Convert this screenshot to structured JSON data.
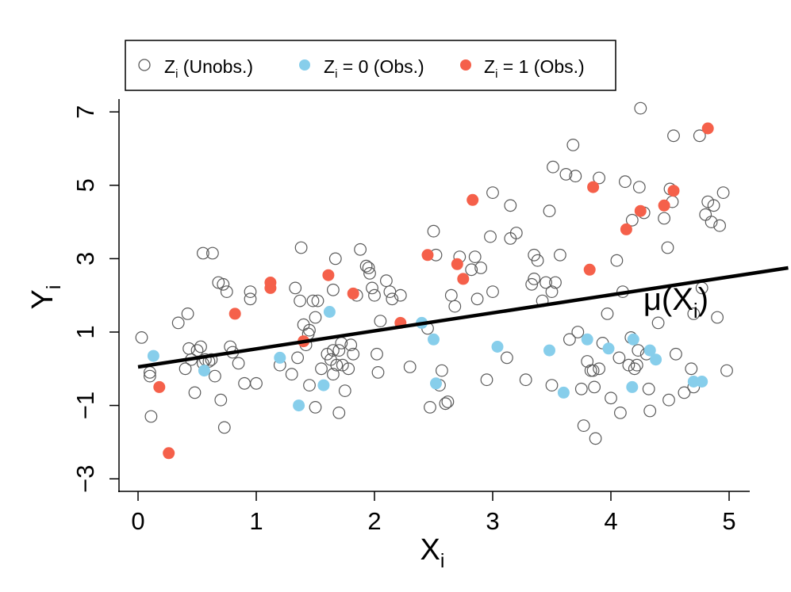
{
  "chart_data": {
    "type": "scatter",
    "xlim": [
      -0.15,
      5.5
    ],
    "ylim": [
      -3.4,
      7.4
    ],
    "xlabel": {
      "main": "X",
      "sub": "i"
    },
    "ylabel": {
      "main": "Y",
      "sub": "i"
    },
    "x_ticks": [
      0,
      1,
      2,
      3,
      4,
      5
    ],
    "y_ticks": [
      -3,
      -1,
      1,
      3,
      5,
      7
    ],
    "x_tick_labels": [
      "0",
      "1",
      "2",
      "3",
      "4",
      "5"
    ],
    "y_tick_labels": [
      "−3",
      "−1",
      "1",
      "3",
      "5",
      "7"
    ],
    "grid": false,
    "legend": {
      "position": "top",
      "items": [
        {
          "var": "Z",
          "sub": "i",
          "text": " (Unobs.)",
          "marker": "open-circle"
        },
        {
          "var": "Z",
          "sub": "i",
          "text": " = 0 (Obs.)",
          "marker": "filled-circle"
        },
        {
          "var": "Z",
          "sub": "i",
          "text": " = 1 (Obs.)",
          "marker": "filled-circle"
        }
      ]
    },
    "line": {
      "name": "μ(X_i)",
      "label_parts": {
        "pre": "μ(X",
        "sub": "i",
        "post": ")"
      },
      "label_at": [
        4.55,
        1.6
      ],
      "color": "#000000",
      "points": [
        [
          0.0,
          0.05
        ],
        [
          5.5,
          2.75
        ]
      ]
    },
    "series": [
      {
        "key": "unobs",
        "color": "#5a5a5a",
        "filled": false,
        "points": [
          [
            0.03,
            0.85
          ],
          [
            0.1,
            -0.1
          ],
          [
            0.1,
            -0.2
          ],
          [
            0.11,
            -1.3
          ],
          [
            0.34,
            1.25
          ],
          [
            0.4,
            0.0
          ],
          [
            0.42,
            1.5
          ],
          [
            0.43,
            0.55
          ],
          [
            0.45,
            0.25
          ],
          [
            0.48,
            -0.65
          ],
          [
            0.5,
            0.5
          ],
          [
            0.53,
            0.6
          ],
          [
            0.55,
            0.15
          ],
          [
            0.57,
            0.25
          ],
          [
            0.6,
            0.2
          ],
          [
            0.62,
            0.25
          ],
          [
            0.65,
            -0.2
          ],
          [
            0.55,
            3.15
          ],
          [
            0.63,
            3.15
          ],
          [
            0.68,
            2.35
          ],
          [
            0.72,
            2.3
          ],
          [
            0.7,
            -0.85
          ],
          [
            0.73,
            -1.6
          ],
          [
            0.75,
            2.1
          ],
          [
            0.78,
            0.6
          ],
          [
            0.8,
            0.45
          ],
          [
            0.85,
            0.15
          ],
          [
            0.9,
            -0.4
          ],
          [
            0.95,
            2.1
          ],
          [
            0.95,
            1.9
          ],
          [
            1.0,
            -0.4
          ],
          [
            1.2,
            0.1
          ],
          [
            1.3,
            -0.15
          ],
          [
            1.33,
            2.2
          ],
          [
            1.35,
            0.3
          ],
          [
            1.37,
            1.85
          ],
          [
            1.38,
            3.3
          ],
          [
            1.4,
            1.2
          ],
          [
            1.42,
            0.65
          ],
          [
            1.44,
            0.95
          ],
          [
            1.45,
            1.05
          ],
          [
            1.45,
            -0.45
          ],
          [
            1.48,
            1.85
          ],
          [
            1.5,
            1.4
          ],
          [
            1.5,
            -1.05
          ],
          [
            1.52,
            1.85
          ],
          [
            1.55,
            0.0
          ],
          [
            1.6,
            0.4
          ],
          [
            1.63,
            0.25
          ],
          [
            1.65,
            0.5
          ],
          [
            1.65,
            2.15
          ],
          [
            1.65,
            -0.15
          ],
          [
            1.68,
            0.1
          ],
          [
            1.7,
            0.5
          ],
          [
            1.72,
            0.7
          ],
          [
            1.73,
            0.1
          ],
          [
            1.75,
            -0.6
          ],
          [
            1.67,
            3.0
          ],
          [
            1.7,
            -1.2
          ],
          [
            1.78,
            0.0
          ],
          [
            1.8,
            0.65
          ],
          [
            1.82,
            0.4
          ],
          [
            1.85,
            2.0
          ],
          [
            1.88,
            3.25
          ],
          [
            1.93,
            2.8
          ],
          [
            1.95,
            2.75
          ],
          [
            1.96,
            2.6
          ],
          [
            1.98,
            2.2
          ],
          [
            2.0,
            2.0
          ],
          [
            2.02,
            0.4
          ],
          [
            2.03,
            -0.1
          ],
          [
            2.05,
            1.3
          ],
          [
            2.1,
            2.4
          ],
          [
            2.13,
            2.1
          ],
          [
            2.15,
            1.9
          ],
          [
            2.22,
            2.0
          ],
          [
            2.3,
            0.05
          ],
          [
            2.45,
            1.1
          ],
          [
            2.47,
            -1.05
          ],
          [
            2.5,
            3.75
          ],
          [
            2.52,
            3.1
          ],
          [
            2.55,
            -0.45
          ],
          [
            2.57,
            -0.05
          ],
          [
            2.6,
            -0.95
          ],
          [
            2.62,
            -0.9
          ],
          [
            2.65,
            2.0
          ],
          [
            2.68,
            1.7
          ],
          [
            2.72,
            3.05
          ],
          [
            2.82,
            2.7
          ],
          [
            2.85,
            3.05
          ],
          [
            2.87,
            1.9
          ],
          [
            2.9,
            2.75
          ],
          [
            2.95,
            -0.3
          ],
          [
            2.98,
            3.6
          ],
          [
            3.0,
            2.1
          ],
          [
            3.0,
            4.8
          ],
          [
            3.12,
            0.3
          ],
          [
            3.15,
            4.45
          ],
          [
            3.15,
            3.55
          ],
          [
            3.2,
            3.7
          ],
          [
            3.28,
            -0.3
          ],
          [
            3.33,
            2.3
          ],
          [
            3.35,
            2.45
          ],
          [
            3.35,
            3.1
          ],
          [
            3.38,
            2.95
          ],
          [
            3.42,
            1.85
          ],
          [
            3.45,
            2.35
          ],
          [
            3.48,
            4.3
          ],
          [
            3.5,
            2.1
          ],
          [
            3.5,
            -0.45
          ],
          [
            3.51,
            5.5
          ],
          [
            3.53,
            2.35
          ],
          [
            3.57,
            3.1
          ],
          [
            3.62,
            5.3
          ],
          [
            3.65,
            0.8
          ],
          [
            3.68,
            6.1
          ],
          [
            3.7,
            5.25
          ],
          [
            3.72,
            1.0
          ],
          [
            3.75,
            -0.55
          ],
          [
            3.77,
            -1.55
          ],
          [
            3.8,
            0.2
          ],
          [
            3.83,
            -0.05
          ],
          [
            3.85,
            -0.05
          ],
          [
            3.86,
            -0.5
          ],
          [
            3.87,
            -1.9
          ],
          [
            3.9,
            0.0
          ],
          [
            3.9,
            5.2
          ],
          [
            3.93,
            0.7
          ],
          [
            3.97,
            1.5
          ],
          [
            4.0,
            -0.8
          ],
          [
            4.05,
            2.95
          ],
          [
            4.07,
            0.3
          ],
          [
            4.08,
            -1.2
          ],
          [
            4.1,
            2.1
          ],
          [
            4.12,
            5.1
          ],
          [
            4.15,
            0.1
          ],
          [
            4.17,
            0.85
          ],
          [
            4.18,
            4.05
          ],
          [
            4.2,
            0.0
          ],
          [
            4.22,
            0.1
          ],
          [
            4.23,
            0.5
          ],
          [
            4.24,
            4.95
          ],
          [
            4.25,
            7.1
          ],
          [
            4.28,
            4.25
          ],
          [
            4.3,
            0.4
          ],
          [
            4.32,
            -0.55
          ],
          [
            4.33,
            -1.15
          ],
          [
            4.4,
            1.25
          ],
          [
            4.45,
            4.1
          ],
          [
            4.48,
            3.3
          ],
          [
            4.49,
            -0.85
          ],
          [
            4.5,
            4.9
          ],
          [
            4.52,
            4.55
          ],
          [
            4.53,
            6.35
          ],
          [
            4.55,
            0.4
          ],
          [
            4.62,
            -0.65
          ],
          [
            4.68,
            0.0
          ],
          [
            4.7,
            -0.5
          ],
          [
            4.7,
            1.5
          ],
          [
            4.75,
            6.35
          ],
          [
            4.77,
            2.2
          ],
          [
            4.8,
            4.2
          ],
          [
            4.82,
            4.55
          ],
          [
            4.85,
            4.0
          ],
          [
            4.87,
            4.45
          ],
          [
            4.9,
            1.4
          ],
          [
            4.92,
            3.9
          ],
          [
            4.95,
            4.8
          ],
          [
            4.98,
            -0.05
          ]
        ]
      },
      {
        "key": "z0",
        "color": "#87ceeb",
        "filled": true,
        "points": [
          [
            0.13,
            0.35
          ],
          [
            0.56,
            -0.05
          ],
          [
            1.2,
            0.3
          ],
          [
            1.36,
            -1.0
          ],
          [
            1.57,
            -0.45
          ],
          [
            1.62,
            1.55
          ],
          [
            2.4,
            1.25
          ],
          [
            2.5,
            0.8
          ],
          [
            2.52,
            -0.4
          ],
          [
            3.04,
            0.6
          ],
          [
            3.48,
            0.5
          ],
          [
            3.6,
            -0.65
          ],
          [
            3.8,
            0.8
          ],
          [
            3.98,
            0.55
          ],
          [
            4.18,
            -0.5
          ],
          [
            4.19,
            0.8
          ],
          [
            4.33,
            0.5
          ],
          [
            4.38,
            0.25
          ],
          [
            4.7,
            -0.35
          ],
          [
            4.77,
            -0.35
          ]
        ]
      },
      {
        "key": "z1",
        "color": "#f5604a",
        "filled": true,
        "points": [
          [
            0.18,
            -0.5
          ],
          [
            0.26,
            -2.3
          ],
          [
            0.82,
            1.5
          ],
          [
            1.12,
            2.35
          ],
          [
            1.12,
            2.2
          ],
          [
            1.4,
            0.75
          ],
          [
            1.61,
            2.55
          ],
          [
            1.82,
            2.05
          ],
          [
            2.22,
            1.25
          ],
          [
            2.45,
            3.1
          ],
          [
            2.7,
            2.85
          ],
          [
            2.75,
            2.45
          ],
          [
            2.83,
            4.6
          ],
          [
            3.82,
            2.7
          ],
          [
            3.85,
            4.95
          ],
          [
            4.13,
            3.8
          ],
          [
            4.25,
            4.3
          ],
          [
            4.45,
            4.45
          ],
          [
            4.53,
            4.85
          ],
          [
            4.82,
            6.55
          ]
        ]
      }
    ]
  }
}
